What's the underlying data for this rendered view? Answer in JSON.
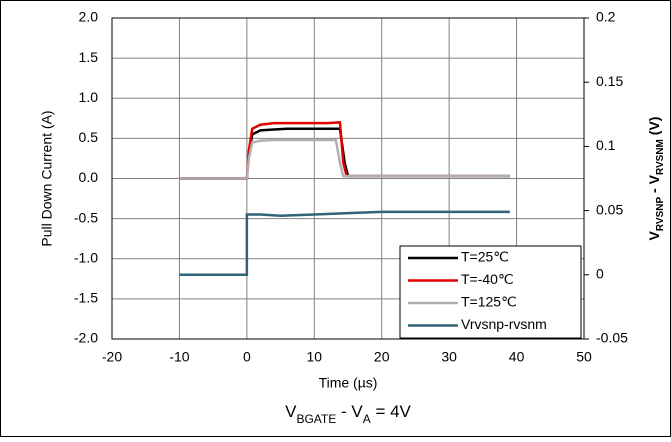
{
  "chart_data": {
    "type": "line",
    "y_label": "Pull Down Current (A)",
    "y2_label": [
      "V",
      "RVSNP",
      " - V",
      "RVSNM",
      " (V)"
    ],
    "x_label": "Time (µs)",
    "annotation": [
      "V",
      "BGATE",
      " - V",
      "A",
      " = 4V"
    ],
    "xlim": [
      -20,
      50
    ],
    "xticks": [
      -20,
      -10,
      0,
      10,
      20,
      30,
      40,
      50
    ],
    "ylim": [
      -2,
      2
    ],
    "yticks": [
      {
        "value": 2,
        "label": "2.0"
      },
      {
        "value": 1.5,
        "label": "1.5"
      },
      {
        "value": 1,
        "label": "1.0"
      },
      {
        "value": 0.5,
        "label": "0.5"
      },
      {
        "value": 0,
        "label": "0.0"
      },
      {
        "value": -0.5,
        "label": "-0.5"
      },
      {
        "value": -1,
        "label": "-1.0"
      },
      {
        "value": -1.5,
        "label": "-1.5"
      },
      {
        "value": -2,
        "label": "-2.0"
      }
    ],
    "y2lim": [
      -0.05,
      0.2
    ],
    "y2ticks": [
      0.2,
      0.15,
      0.1,
      0.05,
      0,
      -0.05
    ],
    "grid": true,
    "legend": "lower right",
    "series": [
      {
        "name": "T=25℃",
        "color": "#000000",
        "x": [
          -10,
          0,
          0.3,
          0.8,
          2,
          4,
          6,
          8,
          10,
          12,
          13.8,
          14.5,
          15,
          20,
          30,
          39
        ],
        "values": [
          0,
          0,
          0.3,
          0.55,
          0.6,
          0.61,
          0.62,
          0.62,
          0.62,
          0.62,
          0.62,
          0.2,
          0.03,
          0.03,
          0.03,
          0.03
        ]
      },
      {
        "name": "T=-40℃",
        "color": "#e00000",
        "x": [
          -10,
          0,
          0.3,
          0.8,
          2,
          4,
          6,
          8,
          10,
          12,
          13.8,
          14.3,
          14.8,
          20,
          30,
          39
        ],
        "values": [
          0,
          0,
          0.35,
          0.62,
          0.67,
          0.69,
          0.69,
          0.69,
          0.69,
          0.69,
          0.7,
          0.2,
          0.03,
          0.03,
          0.03,
          0.03
        ]
      },
      {
        "name": "T=125℃",
        "color": "#b0b0b0",
        "x": [
          -10,
          0,
          0.3,
          0.8,
          2,
          4,
          6,
          8,
          10,
          12,
          13.2,
          13.8,
          14.3,
          20,
          30,
          39
        ],
        "values": [
          0,
          0,
          0.25,
          0.45,
          0.47,
          0.48,
          0.48,
          0.48,
          0.48,
          0.48,
          0.48,
          0.2,
          0.03,
          0.03,
          0.03,
          0.03
        ]
      },
      {
        "name": "Vrvsnp-rvsnm",
        "color": "#2f6479",
        "axis": "y2",
        "x": [
          -10,
          -5,
          0,
          0,
          2,
          5,
          10,
          15,
          20,
          25,
          30,
          35,
          39
        ],
        "values": [
          0,
          0,
          0,
          0.047,
          0.047,
          0.046,
          0.047,
          0.048,
          0.049,
          0.049,
          0.049,
          0.049,
          0.049
        ]
      }
    ]
  }
}
